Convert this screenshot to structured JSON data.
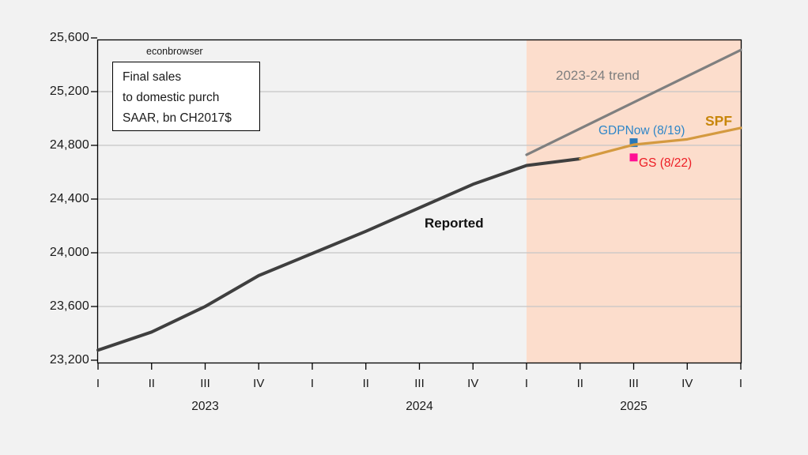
{
  "watermark": "econbrowser",
  "info_box": {
    "lines": [
      "Final sales",
      "to domestic purch",
      "SAAR, bn CH2017$"
    ]
  },
  "annotations": {
    "trend_label": "2023-24 trend",
    "spf_label": "SPF",
    "gdpnow_label": "GDPNow (8/19)",
    "gs_label": "GS (8/22)",
    "reported_label": "Reported"
  },
  "colors": {
    "background": "#f2f2f2",
    "plot_background": "#ffffff",
    "forecast_shade": "#fcddcc",
    "gridline": "#c6c6c6",
    "frame": "#000000",
    "reported_line": "#3f3f3f",
    "trend_line": "#7f7f7f",
    "spf_line": "#d49a40",
    "spf_label": "#c8860b",
    "gdpnow_text": "#2e86c8",
    "gdpnow_marker": "#2778b8",
    "gs_text": "#ed1c24",
    "gs_marker": "#ff0f94"
  },
  "chart_data": {
    "type": "line",
    "title": "",
    "ylabel": "Final sales to domestic purch SAAR, bn CH2017$",
    "ylim": [
      23200,
      25600
    ],
    "grid": true,
    "y_ticks": [
      {
        "value": 23200,
        "label": "23,200"
      },
      {
        "value": 23600,
        "label": "23,600"
      },
      {
        "value": 24000,
        "label": "24,000"
      },
      {
        "value": 24400,
        "label": "24,400"
      },
      {
        "value": 24800,
        "label": "24,800"
      },
      {
        "value": 25200,
        "label": "25,200"
      },
      {
        "value": 25600,
        "label": "25,600"
      }
    ],
    "x_axis": {
      "start_quarter": "2023Q1",
      "end_quarter": "2026Q1",
      "quarter_tick_labels": [
        "I",
        "II",
        "III",
        "IV",
        "I",
        "II",
        "III",
        "IV",
        "I",
        "II",
        "III",
        "IV",
        "I"
      ],
      "year_labels": [
        "2023",
        "2024",
        "2025"
      ]
    },
    "forecast_region": {
      "start_quarter": "2025Q1",
      "end_quarter": "2026Q1"
    },
    "series": [
      {
        "name": "Reported",
        "quarters": [
          "2023Q1",
          "2023Q2",
          "2023Q3",
          "2023Q4",
          "2024Q1",
          "2024Q2",
          "2024Q3",
          "2024Q4",
          "2025Q1",
          "2025Q2"
        ],
        "values": [
          23275,
          23410,
          23600,
          23830,
          23995,
          24160,
          24335,
          24510,
          24650,
          24700
        ]
      },
      {
        "name": "2023-24 trend",
        "quarters": [
          "2025Q1",
          "2026Q1"
        ],
        "values": [
          24730,
          25510
        ]
      },
      {
        "name": "SPF",
        "quarters": [
          "2025Q2",
          "2025Q3",
          "2025Q4",
          "2026Q1"
        ],
        "values": [
          24700,
          24805,
          24845,
          24930
        ]
      }
    ],
    "point_markers": [
      {
        "name": "GDPNow (8/19)",
        "quarter": "2025Q3",
        "value": 24820
      },
      {
        "name": "GS (8/22)",
        "quarter": "2025Q3",
        "value": 24710
      }
    ]
  }
}
